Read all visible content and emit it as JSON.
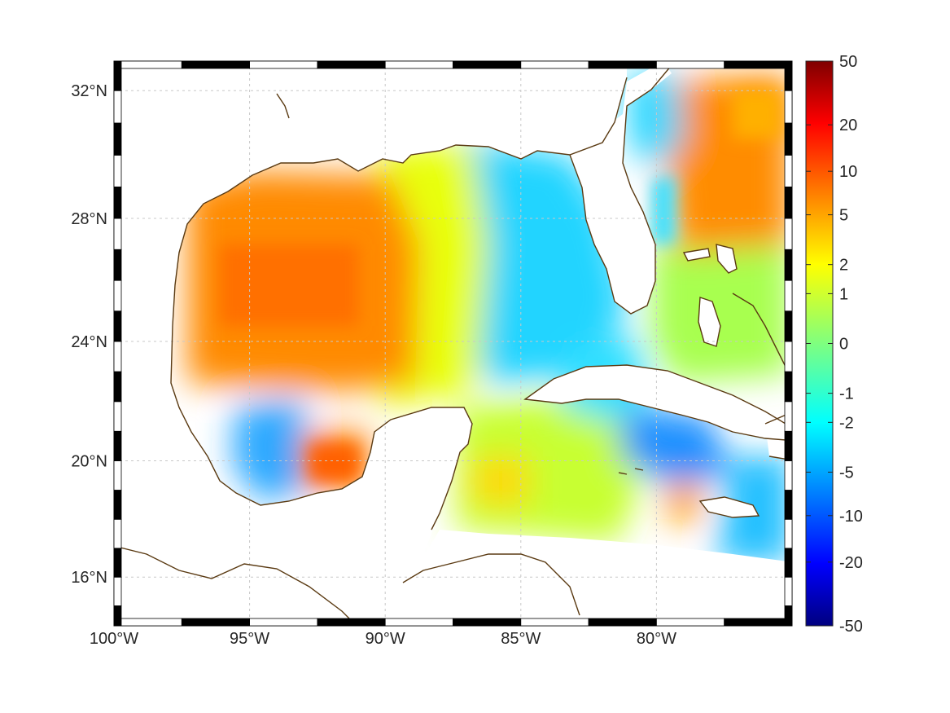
{
  "map": {
    "type": "heatmap",
    "projection": "mercator",
    "lon_range": [
      -100,
      -75
    ],
    "lat_range": [
      14.3,
      32.9
    ],
    "grid": true,
    "colors": {
      "coast": "#5a3a12",
      "grid": "#c8c8c8",
      "frame": "#000000",
      "land": "#ffffff"
    },
    "lon_ticks": [
      {
        "value": -100,
        "label": "100°W"
      },
      {
        "value": -95,
        "label": "95°W"
      },
      {
        "value": -90,
        "label": "90°W"
      },
      {
        "value": -85,
        "label": "85°W"
      },
      {
        "value": -80,
        "label": "80°W"
      }
    ],
    "lat_ticks": [
      {
        "value": 32,
        "label": "32°N"
      },
      {
        "value": 28,
        "label": "28°N"
      },
      {
        "value": 24,
        "label": "24°N"
      },
      {
        "value": 20,
        "label": "20°N"
      },
      {
        "value": 16,
        "label": "16°N"
      }
    ]
  },
  "colorbar": {
    "colormap": "jet",
    "placement": "right",
    "range": [
      -50,
      50
    ],
    "ticks": [
      {
        "value": 50,
        "label": "50"
      },
      {
        "value": 20,
        "label": "20"
      },
      {
        "value": 10,
        "label": "10"
      },
      {
        "value": 5,
        "label": "5"
      },
      {
        "value": 2,
        "label": "2"
      },
      {
        "value": 1,
        "label": "1"
      },
      {
        "value": 0,
        "label": "0"
      },
      {
        "value": -1,
        "label": "-1"
      },
      {
        "value": -2,
        "label": "-2"
      },
      {
        "value": -5,
        "label": "-5"
      },
      {
        "value": -10,
        "label": "-10"
      },
      {
        "value": -20,
        "label": "-20"
      },
      {
        "value": -50,
        "label": "-50"
      }
    ]
  },
  "field_regions": [
    {
      "region": "western-gulf",
      "value": 6
    },
    {
      "region": "central-gulf",
      "value": 1.2
    },
    {
      "region": "eastern-gulf",
      "value": -1.6
    },
    {
      "region": "atlantic-off-florida",
      "value": 5.5
    },
    {
      "region": "bay-of-campeche-west",
      "value": -2.5
    },
    {
      "region": "bay-of-campeche-east",
      "value": 6
    },
    {
      "region": "northwest-caribbean",
      "value": 0.6
    },
    {
      "region": "cayman-basin",
      "value": -2.2
    },
    {
      "region": "south-of-cuba",
      "value": -3
    },
    {
      "region": "jamaica-channel",
      "value": 4
    },
    {
      "region": "yucatan-channel",
      "value": 1.5
    },
    {
      "region": "bahamas",
      "value": 0.3
    }
  ],
  "land_features": [
    {
      "name": "us-gulf-coast"
    },
    {
      "name": "florida"
    },
    {
      "name": "mexico"
    },
    {
      "name": "yucatan"
    },
    {
      "name": "central-america"
    },
    {
      "name": "cuba"
    },
    {
      "name": "jamaica"
    },
    {
      "name": "hispaniola"
    },
    {
      "name": "bahamas"
    },
    {
      "name": "cayman-islands"
    }
  ]
}
